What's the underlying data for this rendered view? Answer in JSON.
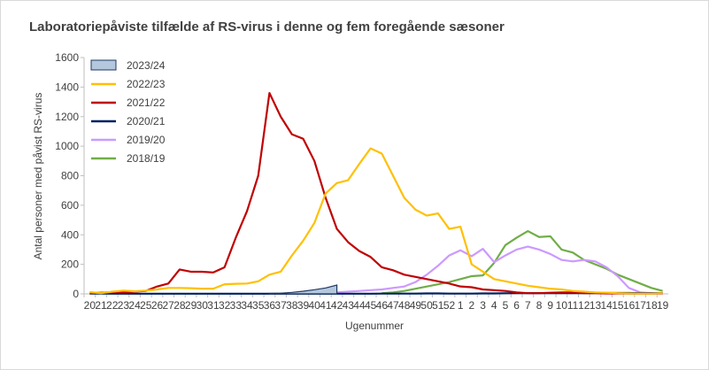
{
  "chart_data": {
    "type": "line",
    "title": "Laboratoriepåviste tilfælde af RS-virus i denne og fem foregående sæsoner",
    "xlabel": "Ugenummer",
    "ylabel": "Antal personer med påvist RS-virus",
    "ylim": [
      0,
      1600
    ],
    "yticks": [
      "0",
      "200",
      "400",
      "600",
      "800",
      "1000",
      "1200",
      "1400",
      "1600"
    ],
    "categories": [
      "20",
      "21",
      "22",
      "23",
      "24",
      "25",
      "26",
      "27",
      "28",
      "29",
      "30",
      "31",
      "32",
      "33",
      "34",
      "35",
      "36",
      "37",
      "38",
      "39",
      "40",
      "41",
      "42",
      "43",
      "44",
      "45",
      "46",
      "47",
      "48",
      "49",
      "50",
      "51",
      "52",
      "1",
      "2",
      "3",
      "4",
      "5",
      "6",
      "7",
      "8",
      "9",
      "10",
      "11",
      "12",
      "13",
      "14",
      "15",
      "16",
      "17",
      "18",
      "19"
    ],
    "grid": false,
    "legend_position": "top-left",
    "series": [
      {
        "name": "2023/24",
        "style": "area",
        "color": "#1f3864",
        "fill": "#b4c7dc",
        "values": [
          null,
          null,
          null,
          null,
          null,
          null,
          null,
          null,
          null,
          null,
          null,
          null,
          null,
          null,
          null,
          null,
          3,
          5,
          10,
          18,
          28,
          40,
          60,
          null,
          null,
          null,
          null,
          null,
          null,
          null,
          null,
          null,
          null,
          null,
          null,
          null,
          null,
          null,
          null,
          null,
          null,
          null,
          null,
          null,
          null,
          null,
          null,
          null,
          null,
          null,
          null,
          null
        ]
      },
      {
        "name": "2022/23",
        "style": "line",
        "color": "#ffc000",
        "values": [
          12,
          5,
          15,
          22,
          18,
          22,
          30,
          40,
          40,
          38,
          35,
          35,
          65,
          68,
          70,
          85,
          130,
          150,
          260,
          360,
          480,
          680,
          750,
          770,
          880,
          985,
          950,
          800,
          650,
          570,
          530,
          545,
          440,
          455,
          200,
          150,
          100,
          85,
          70,
          55,
          45,
          35,
          30,
          20,
          15,
          10,
          8,
          5,
          3,
          2,
          2,
          5
        ]
      },
      {
        "name": "2021/22",
        "style": "line",
        "color": "#c00000",
        "values": [
          5,
          8,
          12,
          10,
          15,
          20,
          50,
          70,
          165,
          150,
          150,
          145,
          180,
          380,
          560,
          800,
          1360,
          1200,
          1080,
          1050,
          900,
          650,
          440,
          350,
          290,
          250,
          180,
          160,
          130,
          115,
          100,
          85,
          70,
          50,
          45,
          30,
          25,
          20,
          10,
          5,
          5,
          8,
          10,
          10,
          5,
          5,
          3,
          3,
          2,
          2,
          2,
          3
        ]
      },
      {
        "name": "2020/21",
        "style": "line",
        "color": "#002060",
        "values": [
          2,
          2,
          1,
          1,
          1,
          1,
          1,
          1,
          1,
          1,
          1,
          1,
          1,
          1,
          1,
          1,
          1,
          1,
          1,
          1,
          1,
          1,
          1,
          1,
          1,
          1,
          2,
          2,
          2,
          2,
          3,
          3,
          2,
          2,
          2,
          3,
          3,
          4,
          5,
          5,
          5,
          5,
          5,
          5,
          5,
          6,
          6,
          6,
          6,
          5,
          5,
          5
        ]
      },
      {
        "name": "2019/20",
        "style": "line",
        "color": "#cc99ff",
        "values": [
          null,
          null,
          null,
          null,
          null,
          null,
          null,
          null,
          null,
          null,
          null,
          null,
          null,
          null,
          null,
          null,
          null,
          null,
          null,
          null,
          null,
          null,
          10,
          15,
          20,
          25,
          30,
          40,
          50,
          80,
          130,
          190,
          260,
          295,
          255,
          305,
          215,
          260,
          300,
          320,
          300,
          270,
          230,
          220,
          230,
          220,
          180,
          120,
          40,
          10,
          5,
          5
        ]
      },
      {
        "name": "2018/19",
        "style": "line",
        "color": "#70ad47",
        "values": [
          null,
          null,
          null,
          null,
          null,
          null,
          null,
          null,
          null,
          null,
          null,
          null,
          null,
          null,
          null,
          null,
          null,
          null,
          null,
          null,
          null,
          null,
          null,
          null,
          null,
          null,
          5,
          10,
          20,
          35,
          50,
          65,
          80,
          100,
          120,
          125,
          210,
          330,
          380,
          425,
          385,
          390,
          300,
          280,
          230,
          200,
          170,
          130,
          100,
          70,
          40,
          20
        ]
      }
    ]
  }
}
